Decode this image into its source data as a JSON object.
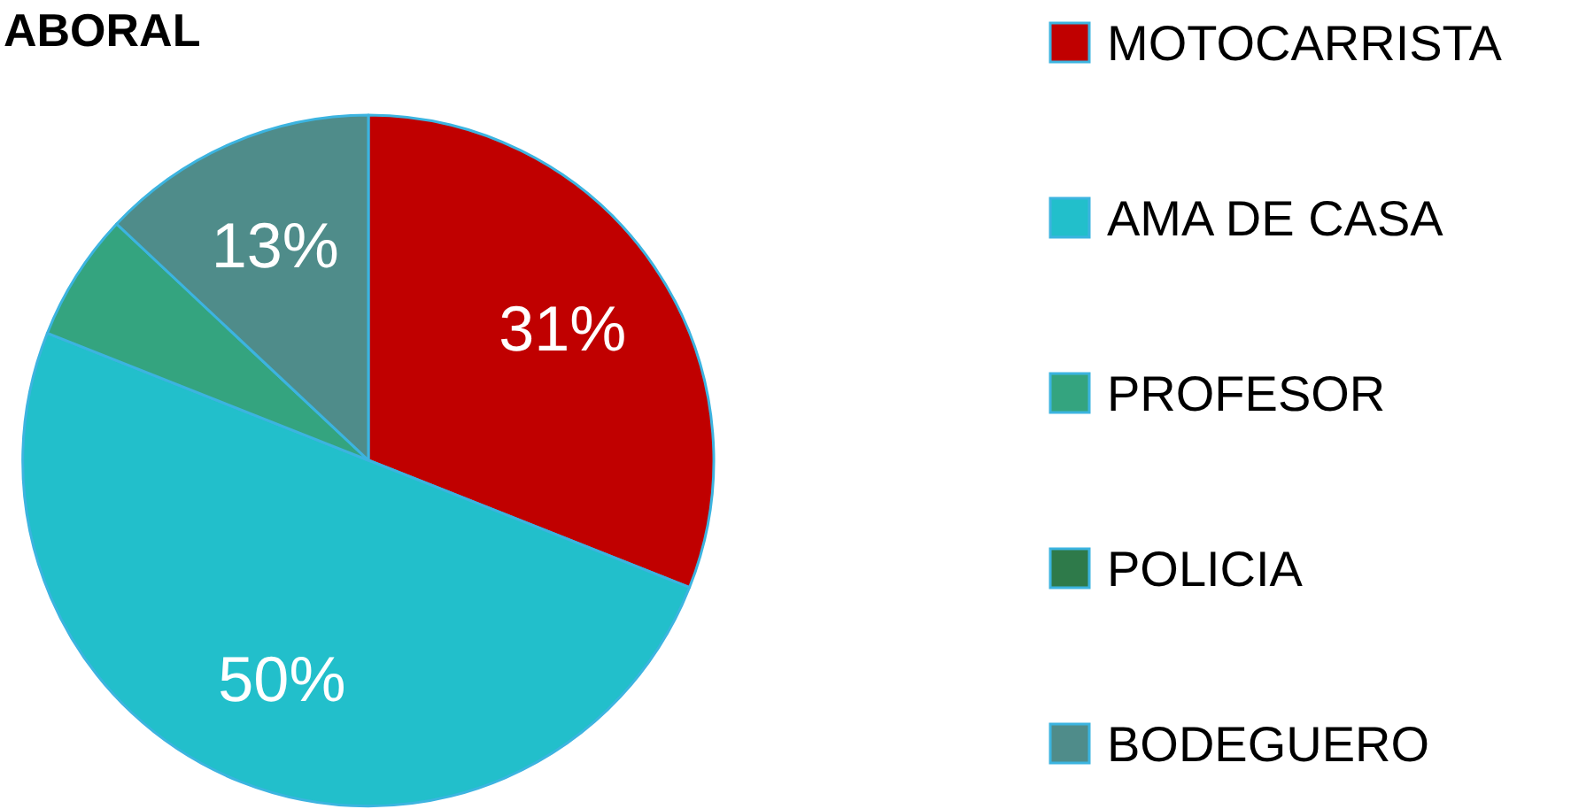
{
  "chart_data": {
    "type": "pie",
    "title": "ABORAL",
    "categories": [
      "MOTOCARRISTA",
      "AMA DE CASA",
      "PROFESOR",
      "POLICIA",
      "BODEGUERO"
    ],
    "values": [
      31,
      50,
      6,
      0,
      13
    ],
    "colors": [
      "#c00000",
      "#22bfcb",
      "#34a47f",
      "#2e7a4a",
      "#4f8c8a"
    ],
    "value_labels": [
      "31%",
      "50%",
      null,
      null,
      "13%"
    ],
    "legend": "right"
  }
}
